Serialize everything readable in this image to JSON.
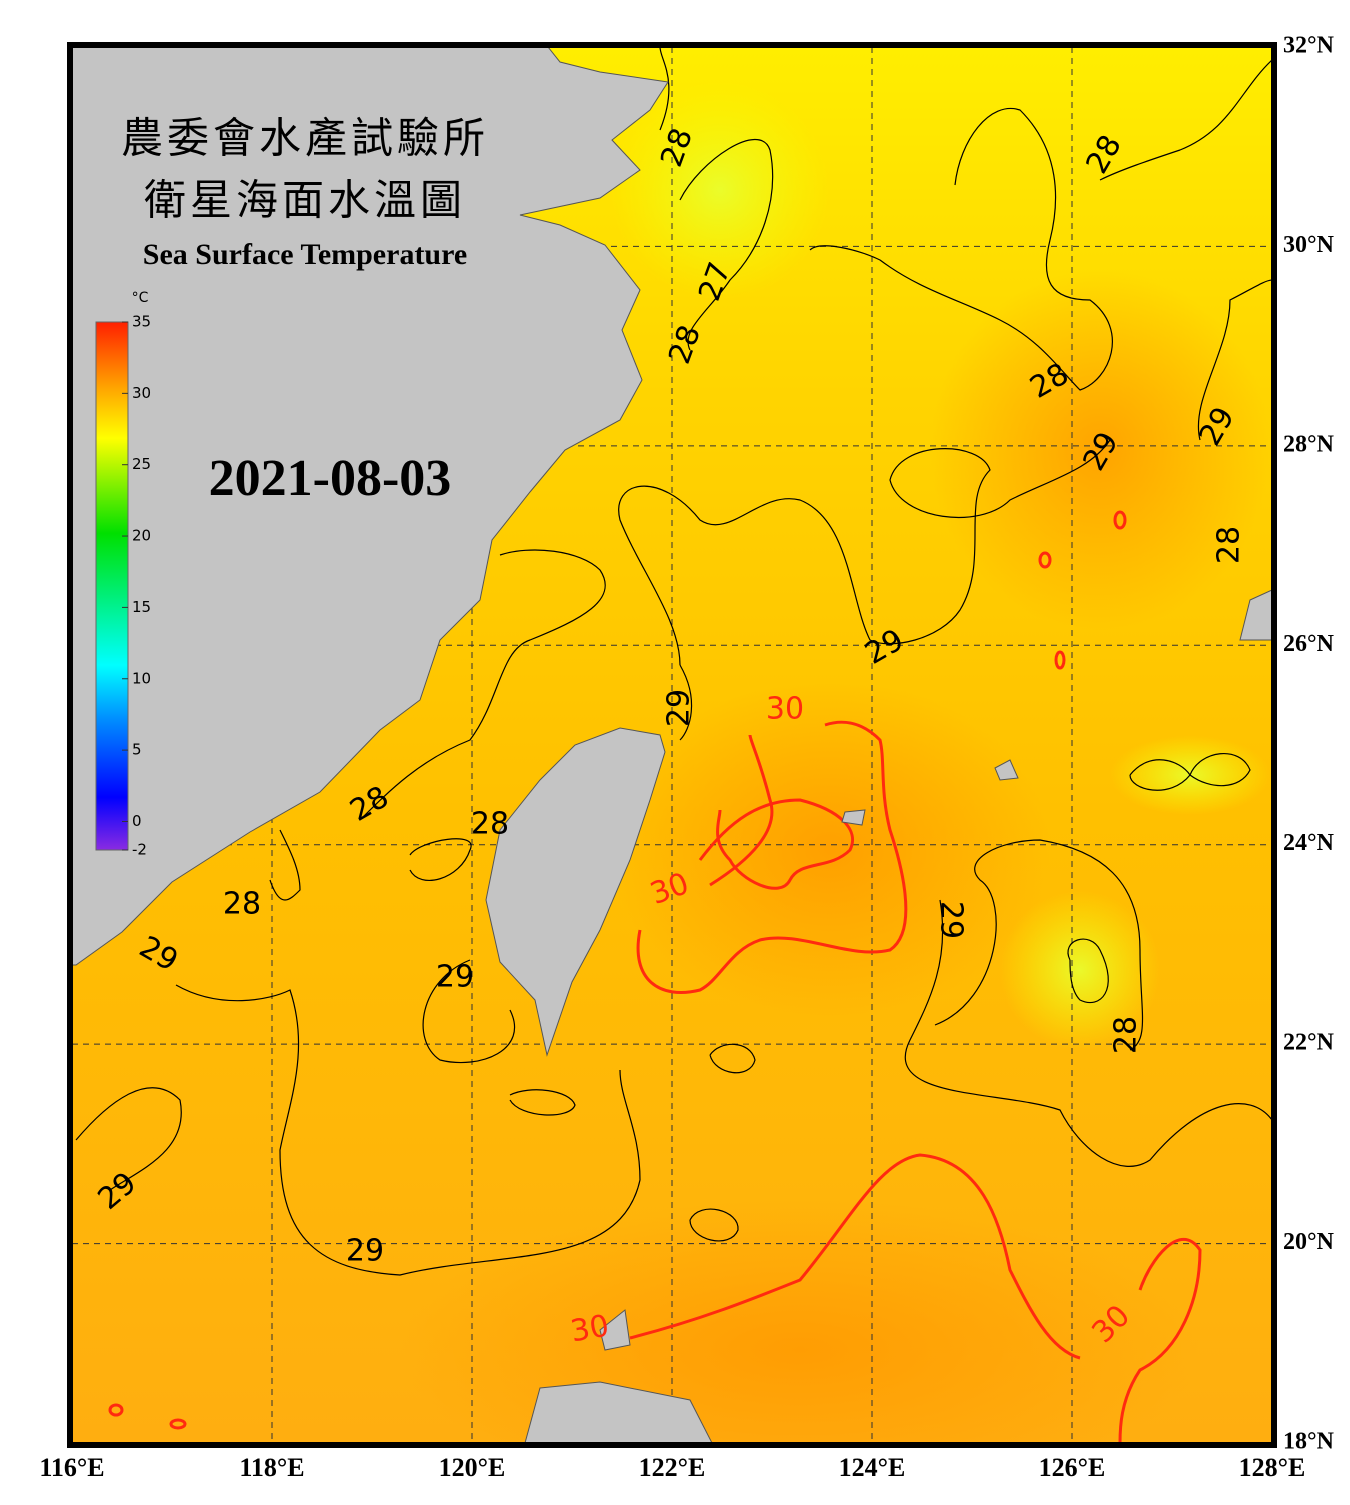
{
  "header": {
    "title": [
      "農委會水產試驗所",
      "衛星海面水溫圖"
    ],
    "subtitle": "Sea Surface Temperature",
    "date": "2021-08-03"
  },
  "colorbar": {
    "unit": "°C",
    "range": [
      -2,
      35
    ],
    "ticks": [
      35,
      30,
      25,
      20,
      15,
      10,
      5,
      0,
      -2
    ]
  },
  "map": {
    "lon_range": [
      116,
      128
    ],
    "lat_range": [
      18,
      32
    ],
    "lon_ticks": [
      {
        "value": 116,
        "label": "116°E"
      },
      {
        "value": 118,
        "label": "118°E"
      },
      {
        "value": 120,
        "label": "120°E"
      },
      {
        "value": 122,
        "label": "122°E"
      },
      {
        "value": 124,
        "label": "124°E"
      },
      {
        "value": 126,
        "label": "126°E"
      },
      {
        "value": 128,
        "label": "128°E"
      }
    ],
    "lat_ticks": [
      {
        "value": 32,
        "label": "32°N"
      },
      {
        "value": 30,
        "label": "30°N"
      },
      {
        "value": 28,
        "label": "28°N"
      },
      {
        "value": 26,
        "label": "26°N"
      },
      {
        "value": 24,
        "label": "24°N"
      },
      {
        "value": 22,
        "label": "22°N"
      },
      {
        "value": 20,
        "label": "20°N"
      },
      {
        "value": 18,
        "label": "18°N"
      }
    ],
    "contour_labels": [
      28,
      28,
      27,
      28,
      28,
      29,
      29,
      28,
      29,
      29,
      30,
      28,
      28,
      30,
      29,
      28,
      29,
      29,
      28,
      29,
      29,
      30,
      30
    ],
    "highlight_contour": 30,
    "highlight_color": "#ff2a10",
    "contour_color": "#000000"
  }
}
